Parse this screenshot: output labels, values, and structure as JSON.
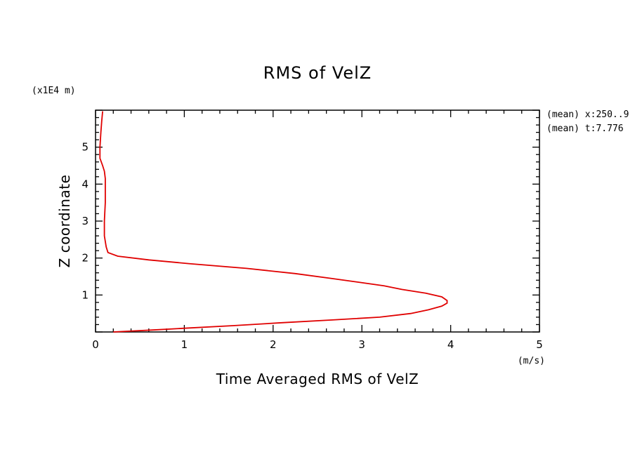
{
  "chart_data": {
    "type": "line",
    "title": "RMS of VelZ",
    "xlabel": "Time Averaged RMS of VelZ",
    "ylabel": "Z coordinate",
    "x_unit": "(m/s)",
    "y_unit": "(x1E4 m)",
    "xlim": [
      0,
      5
    ],
    "ylim": [
      0,
      6
    ],
    "x_ticks": [
      "0",
      "1",
      "2",
      "3",
      "4",
      "5"
    ],
    "y_ticks": [
      "1",
      "2",
      "3",
      "4",
      "5"
    ],
    "annotations": [
      "(mean) x:250..9",
      "(mean) t:7.776"
    ],
    "grid": false,
    "color": "#e00000",
    "series": [
      {
        "x": [
          0.2,
          0.7,
          1.0,
          1.55,
          2.1,
          2.7,
          3.2,
          3.55,
          3.75,
          3.9,
          3.96,
          3.96,
          3.9,
          3.72,
          3.45,
          3.25,
          2.95,
          2.65,
          2.25,
          1.7,
          1.05,
          0.6,
          0.25,
          0.14,
          0.12,
          0.1,
          0.1,
          0.11,
          0.11,
          0.11,
          0.1,
          0.08,
          0.05,
          0.05,
          0.06,
          0.07,
          0.08
        ],
        "y": [
          0.0,
          0.06,
          0.1,
          0.17,
          0.25,
          0.33,
          0.4,
          0.5,
          0.6,
          0.7,
          0.78,
          0.85,
          0.95,
          1.05,
          1.15,
          1.25,
          1.35,
          1.45,
          1.58,
          1.72,
          1.85,
          1.95,
          2.05,
          2.15,
          2.3,
          2.6,
          3.0,
          3.5,
          3.85,
          4.15,
          4.35,
          4.5,
          4.7,
          5.0,
          5.4,
          5.7,
          5.97
        ]
      }
    ]
  }
}
